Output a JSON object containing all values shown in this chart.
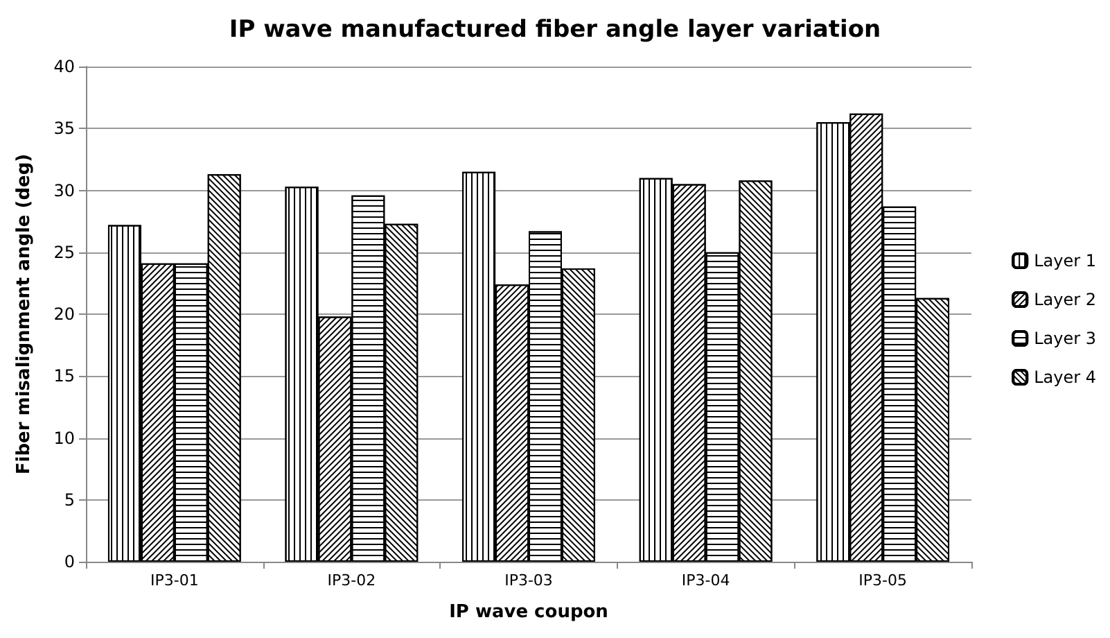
{
  "chart_data": {
    "type": "bar",
    "title": "IP wave manufactured fiber angle layer variation",
    "xlabel": "IP wave coupon",
    "ylabel": "Fiber misalignment angle (deg)",
    "categories": [
      "IP3-01",
      "IP3-02",
      "IP3-03",
      "IP3-04",
      "IP3-05"
    ],
    "series": [
      {
        "name": "Layer 1",
        "color": "#000000",
        "values": [
          27.2,
          30.3,
          31.5,
          31.0,
          35.5
        ]
      },
      {
        "name": "Layer 2",
        "color": "#000000",
        "values": [
          24.1,
          19.8,
          22.4,
          30.5,
          36.2
        ]
      },
      {
        "name": "Layer 3",
        "color": "#000000",
        "values": [
          24.1,
          29.6,
          26.7,
          25.0,
          28.7
        ]
      },
      {
        "name": "Layer 4",
        "color": "#000000",
        "values": [
          31.3,
          27.3,
          23.7,
          30.8,
          21.3
        ]
      }
    ],
    "ylim": [
      0,
      40
    ],
    "yticks": [
      0,
      5,
      10,
      15,
      20,
      25,
      30,
      35,
      40
    ],
    "grid": "y",
    "legend": "right"
  }
}
